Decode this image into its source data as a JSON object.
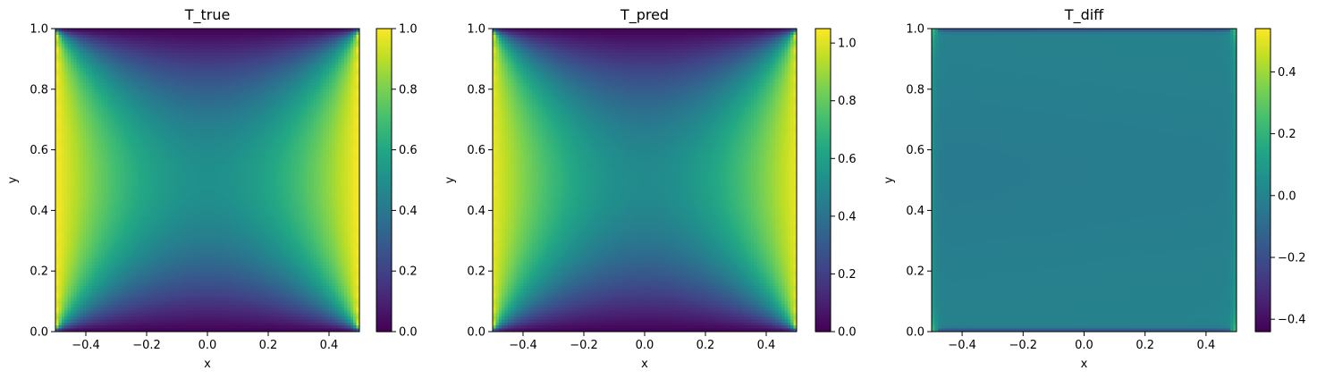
{
  "colormap": "viridis",
  "chart_data": [
    {
      "type": "heatmap",
      "title": "T_true",
      "xlabel": "x",
      "ylabel": "y",
      "xlim": [
        -0.5,
        0.5
      ],
      "ylim": [
        0.0,
        1.0
      ],
      "xticks": [
        "-0.4",
        "-0.2",
        "0.0",
        "0.2",
        "0.4"
      ],
      "yticks": [
        "0.0",
        "0.2",
        "0.4",
        "0.6",
        "0.8",
        "1.0"
      ],
      "colorbar": {
        "min": 0.0,
        "max": 1.0,
        "ticks": [
          "0.0",
          "0.2",
          "0.4",
          "0.6",
          "0.8",
          "1.0"
        ]
      },
      "field": "true",
      "value_range": [
        0.0,
        1.0
      ]
    },
    {
      "type": "heatmap",
      "title": "T_pred",
      "xlabel": "x",
      "ylabel": "y",
      "xlim": [
        -0.5,
        0.5
      ],
      "ylim": [
        0.0,
        1.0
      ],
      "xticks": [
        "-0.4",
        "-0.2",
        "0.0",
        "0.2",
        "0.4"
      ],
      "yticks": [
        "0.0",
        "0.2",
        "0.4",
        "0.6",
        "0.8",
        "1.0"
      ],
      "colorbar": {
        "min": 0.0,
        "max": 1.05,
        "ticks": [
          "0.0",
          "0.2",
          "0.4",
          "0.6",
          "0.8",
          "1.0"
        ]
      },
      "field": "pred",
      "value_range": [
        0.0,
        1.05
      ]
    },
    {
      "type": "heatmap",
      "title": "T_diff",
      "xlabel": "x",
      "ylabel": "y",
      "xlim": [
        -0.5,
        0.5
      ],
      "ylim": [
        0.0,
        1.0
      ],
      "xticks": [
        "-0.4",
        "-0.2",
        "0.0",
        "0.2",
        "0.4"
      ],
      "yticks": [
        "0.0",
        "0.2",
        "0.4",
        "0.6",
        "0.8",
        "1.0"
      ],
      "colorbar": {
        "min": -0.44,
        "max": 0.54,
        "ticks": [
          "−0.4",
          "−0.2",
          "0.0",
          "0.2",
          "0.4"
        ]
      },
      "field": "diff",
      "value_range": [
        -0.44,
        0.54
      ]
    }
  ]
}
